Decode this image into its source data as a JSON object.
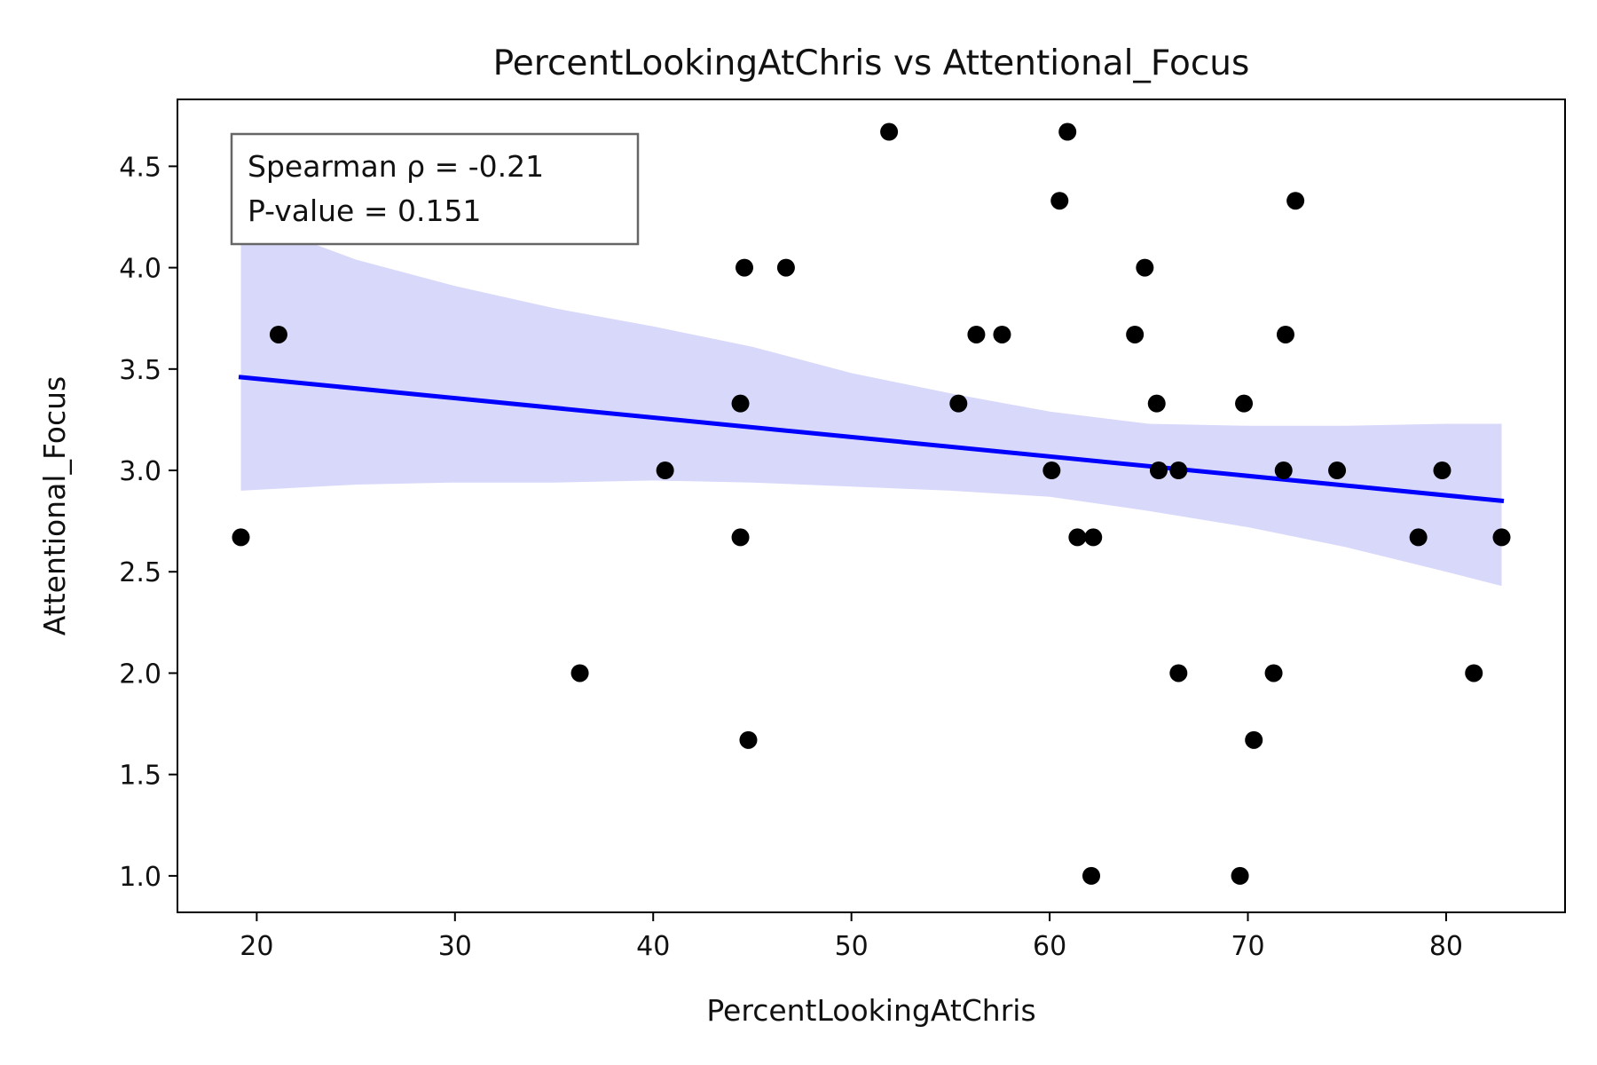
{
  "chart_data": {
    "type": "scatter",
    "title": "PercentLookingAtChris vs Attentional_Focus",
    "xlabel": "PercentLookingAtChris",
    "ylabel": "Attentional_Focus",
    "xlim": [
      16,
      86
    ],
    "ylim": [
      0.82,
      4.83
    ],
    "xticks": [
      "20",
      "30",
      "40",
      "50",
      "60",
      "70",
      "80"
    ],
    "yticks": [
      "1.0",
      "1.5",
      "2.0",
      "2.5",
      "3.0",
      "3.5",
      "4.0",
      "4.5"
    ],
    "grid": false,
    "annotations": {
      "spearman": "Spearman ρ = -0.21",
      "pvalue": "P-value = 0.151"
    },
    "colors": {
      "points": "#000000",
      "regression_line": "#0000ff",
      "confidence_band": "#d8d8fb"
    },
    "points": [
      {
        "x": 19.2,
        "y": 2.67
      },
      {
        "x": 21.1,
        "y": 3.67
      },
      {
        "x": 36.3,
        "y": 2.0
      },
      {
        "x": 40.6,
        "y": 3.0
      },
      {
        "x": 44.4,
        "y": 3.33
      },
      {
        "x": 44.4,
        "y": 2.67
      },
      {
        "x": 44.6,
        "y": 4.0
      },
      {
        "x": 44.8,
        "y": 1.67
      },
      {
        "x": 46.7,
        "y": 4.0
      },
      {
        "x": 51.9,
        "y": 4.67
      },
      {
        "x": 55.4,
        "y": 3.33
      },
      {
        "x": 56.3,
        "y": 3.67
      },
      {
        "x": 57.6,
        "y": 3.67
      },
      {
        "x": 60.1,
        "y": 3.0
      },
      {
        "x": 60.5,
        "y": 4.33
      },
      {
        "x": 60.9,
        "y": 4.67
      },
      {
        "x": 61.4,
        "y": 2.67
      },
      {
        "x": 62.1,
        "y": 1.0
      },
      {
        "x": 62.2,
        "y": 2.67
      },
      {
        "x": 64.3,
        "y": 3.67
      },
      {
        "x": 64.8,
        "y": 4.0
      },
      {
        "x": 65.4,
        "y": 3.33
      },
      {
        "x": 65.5,
        "y": 3.0
      },
      {
        "x": 66.5,
        "y": 3.0
      },
      {
        "x": 66.5,
        "y": 2.0
      },
      {
        "x": 69.6,
        "y": 1.0
      },
      {
        "x": 69.8,
        "y": 3.33
      },
      {
        "x": 70.3,
        "y": 1.67
      },
      {
        "x": 71.3,
        "y": 2.0
      },
      {
        "x": 71.8,
        "y": 3.0
      },
      {
        "x": 71.9,
        "y": 3.67
      },
      {
        "x": 72.4,
        "y": 4.33
      },
      {
        "x": 74.5,
        "y": 3.0
      },
      {
        "x": 78.6,
        "y": 2.67
      },
      {
        "x": 79.8,
        "y": 3.0
      },
      {
        "x": 81.4,
        "y": 2.0
      },
      {
        "x": 82.8,
        "y": 2.67
      }
    ],
    "regression": {
      "x": [
        19.2,
        82.8
      ],
      "y": [
        3.46,
        2.85
      ]
    },
    "confidence_band": {
      "x": [
        19.2,
        25,
        30,
        35,
        40,
        45,
        50,
        55,
        60,
        65,
        70,
        75,
        80,
        82.8
      ],
      "upper": [
        4.25,
        4.04,
        3.91,
        3.8,
        3.71,
        3.61,
        3.48,
        3.38,
        3.29,
        3.23,
        3.22,
        3.22,
        3.23,
        3.23
      ],
      "lower": [
        2.9,
        2.93,
        2.94,
        2.94,
        2.95,
        2.94,
        2.92,
        2.9,
        2.87,
        2.8,
        2.72,
        2.62,
        2.5,
        2.43
      ]
    }
  }
}
